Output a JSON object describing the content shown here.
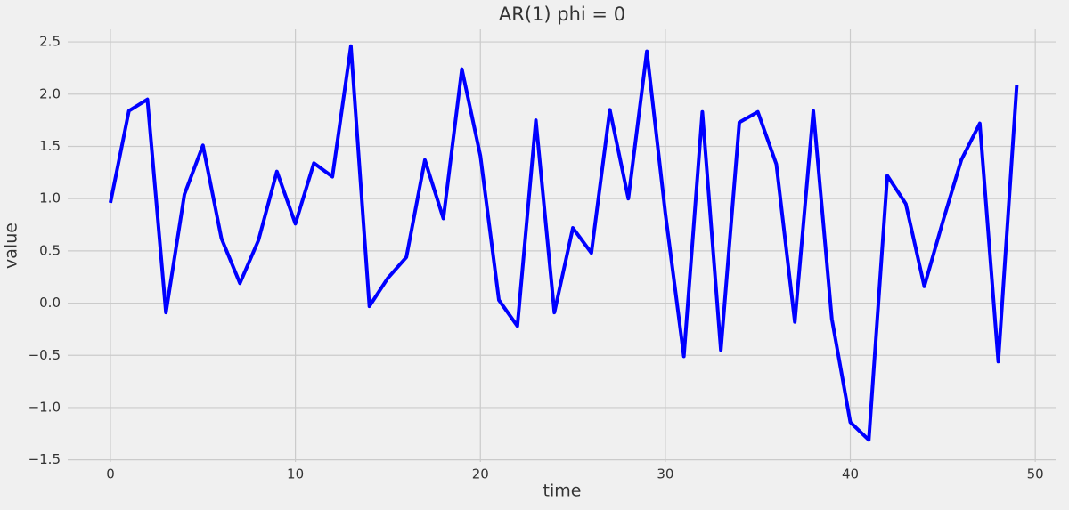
{
  "chart_data": {
    "type": "line",
    "title": "AR(1) phi = 0",
    "xlabel": "time",
    "ylabel": "value",
    "x": [
      0,
      1,
      2,
      3,
      4,
      5,
      6,
      7,
      8,
      9,
      10,
      11,
      12,
      13,
      14,
      15,
      16,
      17,
      18,
      19,
      20,
      21,
      22,
      23,
      24,
      25,
      26,
      27,
      28,
      29,
      30,
      31,
      32,
      33,
      34,
      35,
      36,
      37,
      38,
      39,
      40,
      41,
      42,
      43,
      44,
      45,
      46,
      47,
      48,
      49
    ],
    "values": [
      0.96,
      1.84,
      1.95,
      -0.09,
      1.04,
      1.51,
      0.62,
      0.19,
      0.6,
      1.26,
      0.76,
      1.34,
      1.21,
      2.46,
      -0.03,
      0.24,
      0.44,
      1.37,
      0.81,
      2.24,
      1.41,
      0.03,
      -0.22,
      1.75,
      -0.09,
      0.72,
      0.48,
      1.85,
      1.0,
      2.41,
      0.86,
      -0.51,
      1.83,
      -0.45,
      1.73,
      1.83,
      1.33,
      -0.18,
      1.84,
      -0.15,
      -1.14,
      -1.31,
      1.22,
      0.95,
      0.16,
      0.78,
      1.37,
      1.72,
      -0.56,
      2.09
    ],
    "color": "#0000ff",
    "xlim": [
      -2.31,
      51.1
    ],
    "xticks": [
      0,
      10,
      20,
      30,
      40,
      50
    ],
    "ylim": [
      -1.52,
      2.62
    ],
    "yticks": [
      {
        "value": -1.5,
        "label": "−1.5"
      },
      {
        "value": -1.0,
        "label": "−1.0"
      },
      {
        "value": -0.5,
        "label": "−0.5"
      },
      {
        "value": 0.0,
        "label": "0.0"
      },
      0.5,
      {
        "value": 1.0,
        "label": "1.0"
      },
      1.5,
      {
        "value": 2.0,
        "label": "2.0"
      },
      2.5
    ],
    "grid": true
  }
}
